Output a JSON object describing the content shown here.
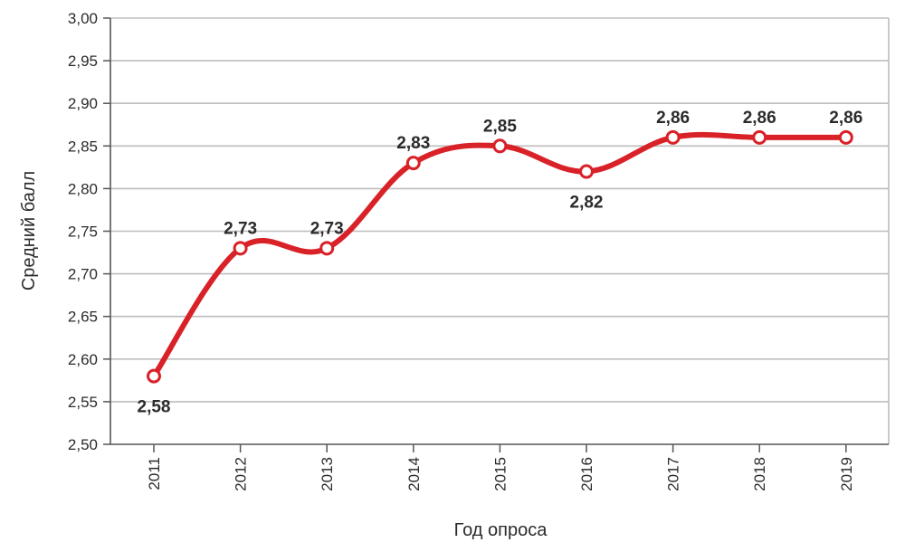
{
  "chart_data": {
    "type": "line",
    "xlabel": "Год опроса",
    "ylabel": "Средний балл",
    "ylim": [
      2.5,
      3.0
    ],
    "y_ticks": [
      "2,50",
      "2,55",
      "2,60",
      "2,65",
      "2,70",
      "2,75",
      "2,80",
      "2,85",
      "2,90",
      "2,95",
      "3,00"
    ],
    "categories": [
      "2011",
      "2012",
      "2013",
      "2014",
      "2015",
      "2016",
      "2017",
      "2018",
      "2019"
    ],
    "values": [
      2.58,
      2.73,
      2.73,
      2.83,
      2.85,
      2.82,
      2.86,
      2.86,
      2.86
    ],
    "data_labels": [
      "2,58",
      "2,73",
      "2,73",
      "2,83",
      "2,85",
      "2,82",
      "2,86",
      "2,86",
      "2,86"
    ],
    "label_positions": [
      "below",
      "above",
      "above",
      "above",
      "above",
      "below",
      "above",
      "above",
      "above"
    ],
    "grid": true,
    "legend": "none",
    "line_color": "#d92128",
    "marker_fill": "#ffffff"
  }
}
